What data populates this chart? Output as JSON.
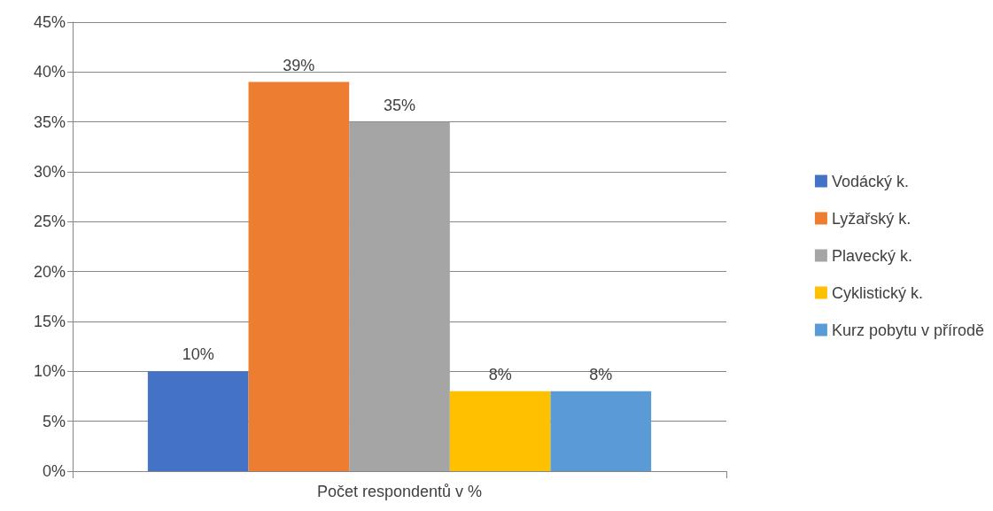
{
  "chart_data": {
    "type": "bar",
    "categories": [
      "Počet respondentů v %"
    ],
    "series": [
      {
        "name": "Vodácký k.",
        "color": "#4472c4",
        "values": [
          10
        ],
        "value_labels": [
          "10%"
        ]
      },
      {
        "name": "Lyžařský k.",
        "color": "#ed7d31",
        "values": [
          39
        ],
        "value_labels": [
          "39%"
        ]
      },
      {
        "name": "Plavecký k.",
        "color": "#a5a5a5",
        "values": [
          35
        ],
        "value_labels": [
          "35%"
        ]
      },
      {
        "name": "Cyklistický k.",
        "color": "#ffc000",
        "values": [
          8
        ],
        "value_labels": [
          "8%"
        ]
      },
      {
        "name": "Kurz pobytu v přírodě",
        "color": "#5b9bd5",
        "values": [
          8
        ],
        "value_labels": [
          "8%"
        ]
      }
    ],
    "ylim": [
      0,
      45
    ],
    "yticks": [
      {
        "value": 0,
        "label": "0%"
      },
      {
        "value": 5,
        "label": "5%"
      },
      {
        "value": 10,
        "label": "10%"
      },
      {
        "value": 15,
        "label": "15%"
      },
      {
        "value": 20,
        "label": "20%"
      },
      {
        "value": 25,
        "label": "25%"
      },
      {
        "value": 30,
        "label": "30%"
      },
      {
        "value": 35,
        "label": "35%"
      },
      {
        "value": 40,
        "label": "40%"
      },
      {
        "value": 45,
        "label": "45%"
      }
    ],
    "grid": "y",
    "legend": "right"
  }
}
